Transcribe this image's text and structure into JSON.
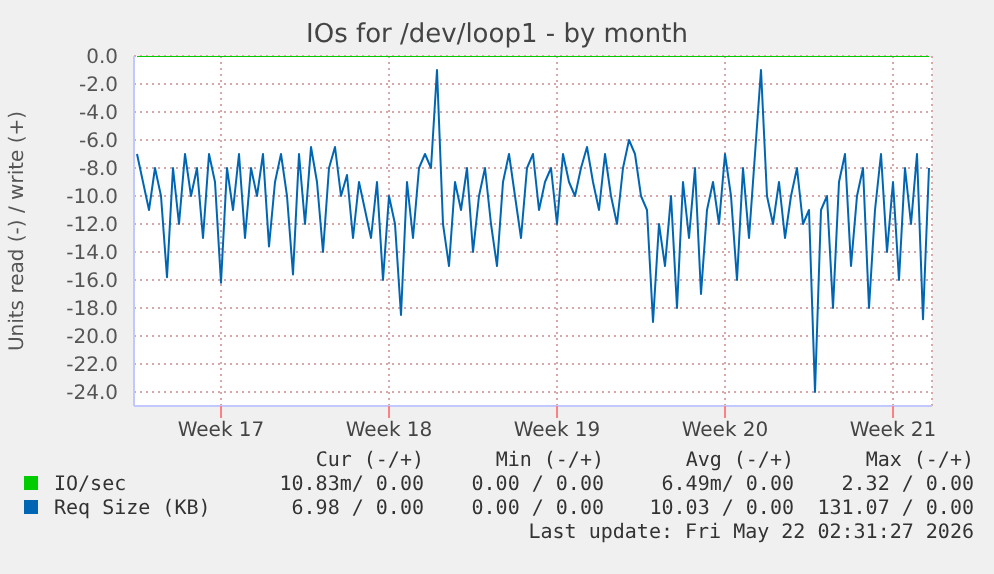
{
  "chart_data": {
    "type": "line",
    "title": "IOs for /dev/loop1 - by month",
    "ylabel": "Units read (-) / write (+)",
    "categories": [
      null,
      null,
      null,
      null,
      null,
      null,
      null,
      null,
      null,
      null,
      null,
      null,
      null,
      null,
      "Week 17",
      null,
      null,
      null,
      null,
      null,
      null,
      null,
      null,
      null,
      null,
      null,
      null,
      null,
      null,
      null,
      null,
      null,
      null,
      null,
      null,
      null,
      null,
      null,
      null,
      null,
      null,
      null,
      "Week 18",
      null,
      null,
      null,
      null,
      null,
      null,
      null,
      null,
      null,
      null,
      null,
      null,
      null,
      null,
      null,
      null,
      null,
      null,
      null,
      null,
      null,
      null,
      null,
      null,
      null,
      null,
      null,
      "Week 19",
      null,
      null,
      null,
      null,
      null,
      null,
      null,
      null,
      null,
      null,
      null,
      null,
      null,
      null,
      null,
      null,
      null,
      null,
      null,
      null,
      null,
      null,
      null,
      null,
      null,
      null,
      null,
      "Week 20",
      null,
      null,
      null,
      null,
      null,
      null,
      null,
      null,
      null,
      null,
      null,
      null,
      null,
      null,
      null,
      null,
      null,
      null,
      null,
      null,
      null,
      null,
      null,
      null,
      null,
      null,
      null,
      "Week 21",
      null,
      null,
      null,
      null,
      null,
      null
    ],
    "ylim": [
      -25,
      0
    ],
    "yticks": [
      {
        "value": 0,
        "label": "0.0"
      },
      {
        "value": -2,
        "label": "-2.0"
      },
      {
        "value": -4,
        "label": "-4.0"
      },
      {
        "value": -6,
        "label": "-6.0"
      },
      {
        "value": -8,
        "label": "-8.0"
      },
      {
        "value": -10,
        "label": "-10.0"
      },
      {
        "value": -12,
        "label": "-12.0"
      },
      {
        "value": -14,
        "label": "-14.0"
      },
      {
        "value": -16,
        "label": "-16.0"
      },
      {
        "value": -18,
        "label": "-18.0"
      },
      {
        "value": -20,
        "label": "-20.0"
      },
      {
        "value": -22,
        "label": "-22.0"
      },
      {
        "value": -24,
        "label": "-24.0"
      }
    ],
    "grid": true,
    "legend": "bottom",
    "marker": "none",
    "line_style": "solid",
    "series": [
      {
        "name": "IO/sec",
        "color": "#00cc00",
        "values": [
          0,
          0,
          0,
          0,
          0,
          0,
          0,
          0,
          0,
          0,
          0,
          0,
          0,
          0,
          0,
          0,
          0,
          0,
          0,
          0,
          0,
          0,
          0,
          0,
          0,
          0,
          0,
          0,
          0,
          0,
          0,
          0,
          0,
          0,
          0,
          0,
          0,
          0,
          0,
          0,
          0,
          0,
          0,
          0,
          0,
          0,
          0,
          0,
          0,
          0,
          0,
          0,
          0,
          0,
          0,
          0,
          0,
          0,
          0,
          0,
          0,
          0,
          0,
          0,
          0,
          0,
          0,
          0,
          0,
          0,
          0,
          0,
          0,
          0,
          0,
          0,
          0,
          0,
          0,
          0,
          0,
          0,
          0,
          0,
          0,
          0,
          0,
          0,
          0,
          0,
          0,
          0,
          0,
          0,
          0,
          0,
          0,
          0,
          0,
          0,
          0,
          0,
          0,
          0,
          0,
          0,
          0,
          0,
          0,
          0,
          0,
          0,
          0,
          0,
          0,
          0,
          0,
          0,
          0,
          0,
          0,
          0,
          0,
          0,
          0,
          0,
          0,
          0,
          0,
          0,
          0,
          0,
          0
        ]
      },
      {
        "name": "Req Size (KB)",
        "color": "#0066b3",
        "values": [
          -7,
          -9,
          -11,
          -8,
          -10,
          -15.8,
          -8,
          -12,
          -7,
          -10,
          -8,
          -13,
          -7,
          -9,
          -16.2,
          -8,
          -11,
          -7,
          -13,
          -8,
          -10,
          -7,
          -13.6,
          -9,
          -7,
          -10,
          -15.6,
          -7,
          -12,
          -6.5,
          -9,
          -14,
          -8,
          -6.5,
          -10,
          -8.5,
          -13,
          -9,
          -11,
          -13,
          -9,
          -16,
          -10,
          -12,
          -18.5,
          -9,
          -13,
          -8,
          -7,
          -8,
          -1,
          -12,
          -15,
          -9,
          -11,
          -8,
          -14,
          -10,
          -8,
          -12,
          -15,
          -9,
          -7,
          -10,
          -13,
          -8,
          -7,
          -11,
          -9,
          -8,
          -12,
          -7,
          -9,
          -10,
          -8,
          -6.5,
          -9,
          -11,
          -7,
          -10,
          -12,
          -8,
          -6,
          -7,
          -10,
          -11,
          -19,
          -12,
          -15,
          -10,
          -18,
          -9,
          -13,
          -8,
          -17,
          -11,
          -9,
          -12,
          -7,
          -10,
          -16,
          -8,
          -13,
          -7,
          -1,
          -10,
          -12,
          -9,
          -13,
          -10,
          -8,
          -12,
          -11,
          -24,
          -11,
          -10,
          -18,
          -9,
          -7,
          -15,
          -10,
          -8,
          -18,
          -11,
          -7,
          -14,
          -9,
          -16,
          -8,
          -12,
          -7,
          -18.8,
          -8
        ]
      }
    ],
    "annotations": [
      "Cur (-/+)",
      "Min (-/+)",
      "Avg (-/+)",
      "Max (-/+)",
      "10.83m/ 0.00",
      "0.00 / 0.00",
      "6.49m/ 0.00",
      "2.32 / 0.00",
      "6.98 / 0.00",
      "0.00 / 0.00",
      "10.03 / 0.00",
      "131.07 / 0.00",
      "Last update: Fri May 22 02:31:27 2026"
    ]
  }
}
